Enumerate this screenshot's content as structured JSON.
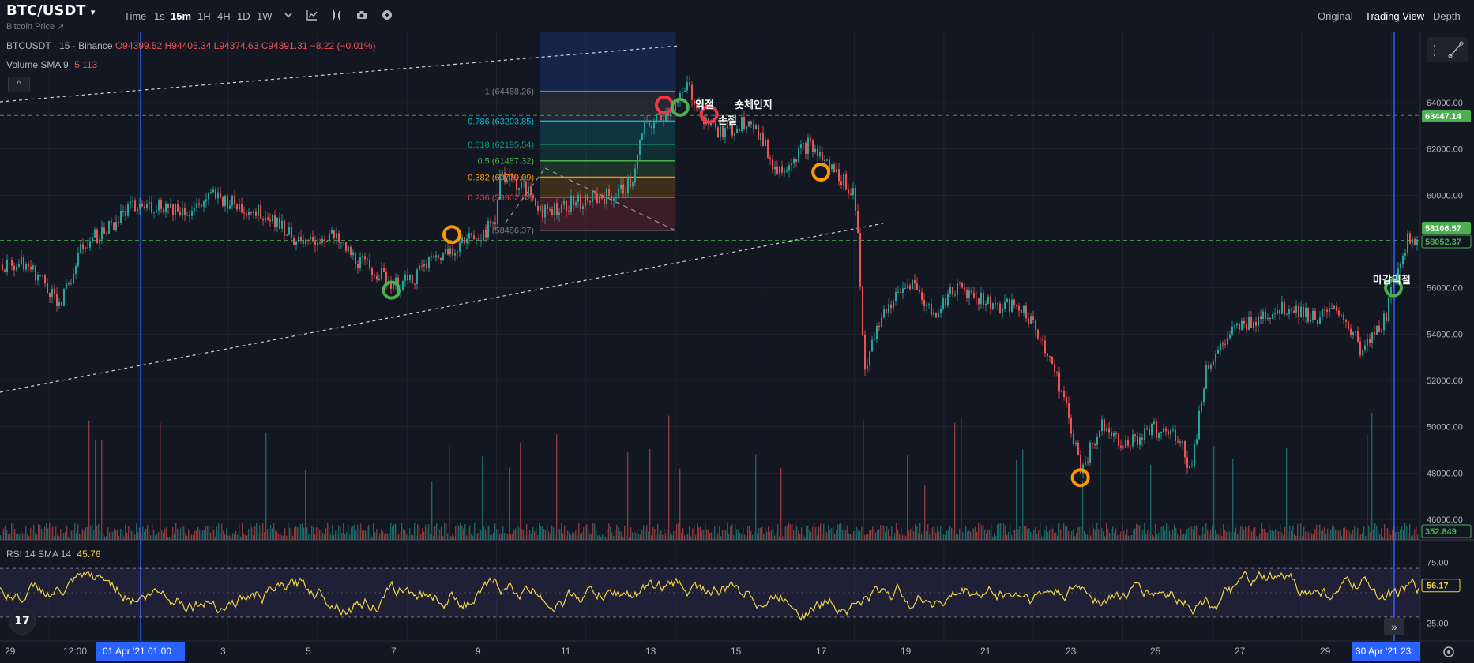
{
  "header": {
    "symbol": "BTC/USDT",
    "subtitle": "Bitcoin Price ↗",
    "timeframes": [
      "Time",
      "1s",
      "15m",
      "1H",
      "4H",
      "1D",
      "1W"
    ],
    "active_timeframe": "15m",
    "toolbar_icons": [
      "chevron-down-icon",
      "indicator-icon",
      "candles-icon",
      "camera-icon",
      "plus-circle-icon"
    ],
    "views": [
      "Original",
      "Trading View",
      "Depth"
    ],
    "active_view": "Trading View"
  },
  "legend": {
    "name": "BTCUSDT · 15 · Binance",
    "open": "O94399.52",
    "high": "H94405.34",
    "low": "L94374.63",
    "close": "C94391.31",
    "change": "−8.22 (−0.01%)",
    "volume_label": "Volume SMA 9",
    "volume_value": "5.113",
    "collapse_icon": "^"
  },
  "rsi": {
    "label": "RSI 14 SMA 14",
    "value": "45.76",
    "last_tag": "56.17",
    "ticks": [
      "75.00",
      "25.00"
    ]
  },
  "colors": {
    "bg": "#131722",
    "up": "#26a69a",
    "down": "#ef5350",
    "rsi": "#f0d443",
    "crosshair": "#2962ff",
    "price_tag_green": "#4caf50"
  },
  "chart_data": {
    "type": "candlestick",
    "x_ticks": [
      "29",
      "12:00",
      "01 Apr '21  01:00",
      "3",
      "5",
      "7",
      "9",
      "11",
      "13",
      "15",
      "17",
      "19",
      "21",
      "23",
      "25",
      "27",
      "29",
      "30 Apr '21  23:",
      ""
    ],
    "y_ticks": [
      "64000.00",
      "62000.00",
      "60000.00",
      "56000.00",
      "54000.00",
      "52000.00",
      "50000.00",
      "48000.00",
      "46000.00"
    ],
    "ylim": [
      45700,
      66300
    ],
    "price_tags": [
      "63447.14",
      "58106.57",
      "58052.37",
      "352.849"
    ],
    "close_path": [
      [
        0,
        57000
      ],
      [
        0.3,
        56500
      ],
      [
        0.8,
        55300
      ],
      [
        1.3,
        57900
      ],
      [
        1.8,
        58500
      ],
      [
        2.3,
        59400
      ],
      [
        3,
        59600
      ],
      [
        3.7,
        59300
      ],
      [
        4.2,
        60000
      ],
      [
        4.8,
        59500
      ],
      [
        5.5,
        59100
      ],
      [
        6.2,
        57800
      ],
      [
        6.8,
        58300
      ],
      [
        7.4,
        57200
      ],
      [
        8.3,
        56100
      ],
      [
        8.6,
        56300
      ],
      [
        9,
        57100
      ],
      [
        9.6,
        57800
      ],
      [
        10.5,
        58700
      ],
      [
        10.6,
        61000
      ],
      [
        11.2,
        60200
      ],
      [
        11.6,
        59300
      ],
      [
        12.3,
        59700
      ],
      [
        13.2,
        60000
      ],
      [
        13.6,
        60700
      ],
      [
        13.8,
        62800
      ],
      [
        14.6,
        64000
      ],
      [
        14.8,
        64700
      ],
      [
        15.2,
        63300
      ],
      [
        15.6,
        62600
      ],
      [
        16.2,
        63400
      ],
      [
        16.8,
        61000
      ],
      [
        17.5,
        62200
      ],
      [
        18,
        61200
      ],
      [
        18.5,
        60200
      ],
      [
        18.6,
        58800
      ],
      [
        18.75,
        52500
      ],
      [
        19.2,
        55000
      ],
      [
        19.8,
        56300
      ],
      [
        20.3,
        54800
      ],
      [
        20.8,
        56100
      ],
      [
        21.6,
        55300
      ],
      [
        22.3,
        55100
      ],
      [
        22.8,
        53500
      ],
      [
        23.2,
        51300
      ],
      [
        23.6,
        48200
      ],
      [
        24.1,
        50200
      ],
      [
        24.6,
        49200
      ],
      [
        25.2,
        49900
      ],
      [
        25.8,
        49600
      ],
      [
        26.05,
        48000
      ],
      [
        26.4,
        52600
      ],
      [
        27,
        54100
      ],
      [
        27.6,
        54800
      ],
      [
        28.3,
        55200
      ],
      [
        28.8,
        54700
      ],
      [
        29.4,
        55000
      ],
      [
        29.9,
        53200
      ],
      [
        30.4,
        54700
      ],
      [
        30.7,
        57100
      ],
      [
        30.9,
        58100
      ]
    ],
    "markers": [
      {
        "t": 8.2,
        "p": 55900,
        "kind": "green"
      },
      {
        "t": 9.55,
        "p": 58300,
        "kind": "orange"
      },
      {
        "t": 14.3,
        "p": 63900,
        "kind": "red"
      },
      {
        "t": 14.65,
        "p": 63800,
        "kind": "green"
      },
      {
        "t": 15.3,
        "p": 63500,
        "kind": "red"
      },
      {
        "t": 17.8,
        "p": 61000,
        "kind": "orange"
      },
      {
        "t": 23.6,
        "p": 47800,
        "kind": "orange"
      },
      {
        "t": 30.6,
        "p": 56000,
        "kind": "green"
      }
    ],
    "annotations": [
      "익절",
      "손절",
      "숏체인지",
      "마감익절"
    ],
    "fibonacci": {
      "levels": [
        {
          "ratio": "1",
          "label": "1 (64488.26)",
          "price": 64488.26,
          "color": "#787b86"
        },
        {
          "ratio": "0.786",
          "label": "0.786 (63203.85)",
          "price": 63203.85,
          "color": "#00bcd4"
        },
        {
          "ratio": "0.618",
          "label": "0.618 (62195.54)",
          "price": 62195.54,
          "color": "#089981"
        },
        {
          "ratio": "0.5",
          "label": "0.5 (61487.32)",
          "price": 61487.32,
          "color": "#4caf50"
        },
        {
          "ratio": "0.382",
          "label": "0.382 (60779.09)",
          "price": 60779.09,
          "color": "#ff9800"
        },
        {
          "ratio": "0.236",
          "label": "0.236 (59902.82)",
          "price": 59902.82,
          "color": "#f23645"
        },
        {
          "ratio": "0",
          "label": "0 (58486.37)",
          "price": 58486.37,
          "color": "#787b86"
        }
      ]
    },
    "horizontal_lines": [
      63447.14,
      58052.37
    ],
    "rsi": {
      "overbought": 70,
      "oversold": 30,
      "ylim": [
        15,
        85
      ]
    },
    "grid": true
  }
}
